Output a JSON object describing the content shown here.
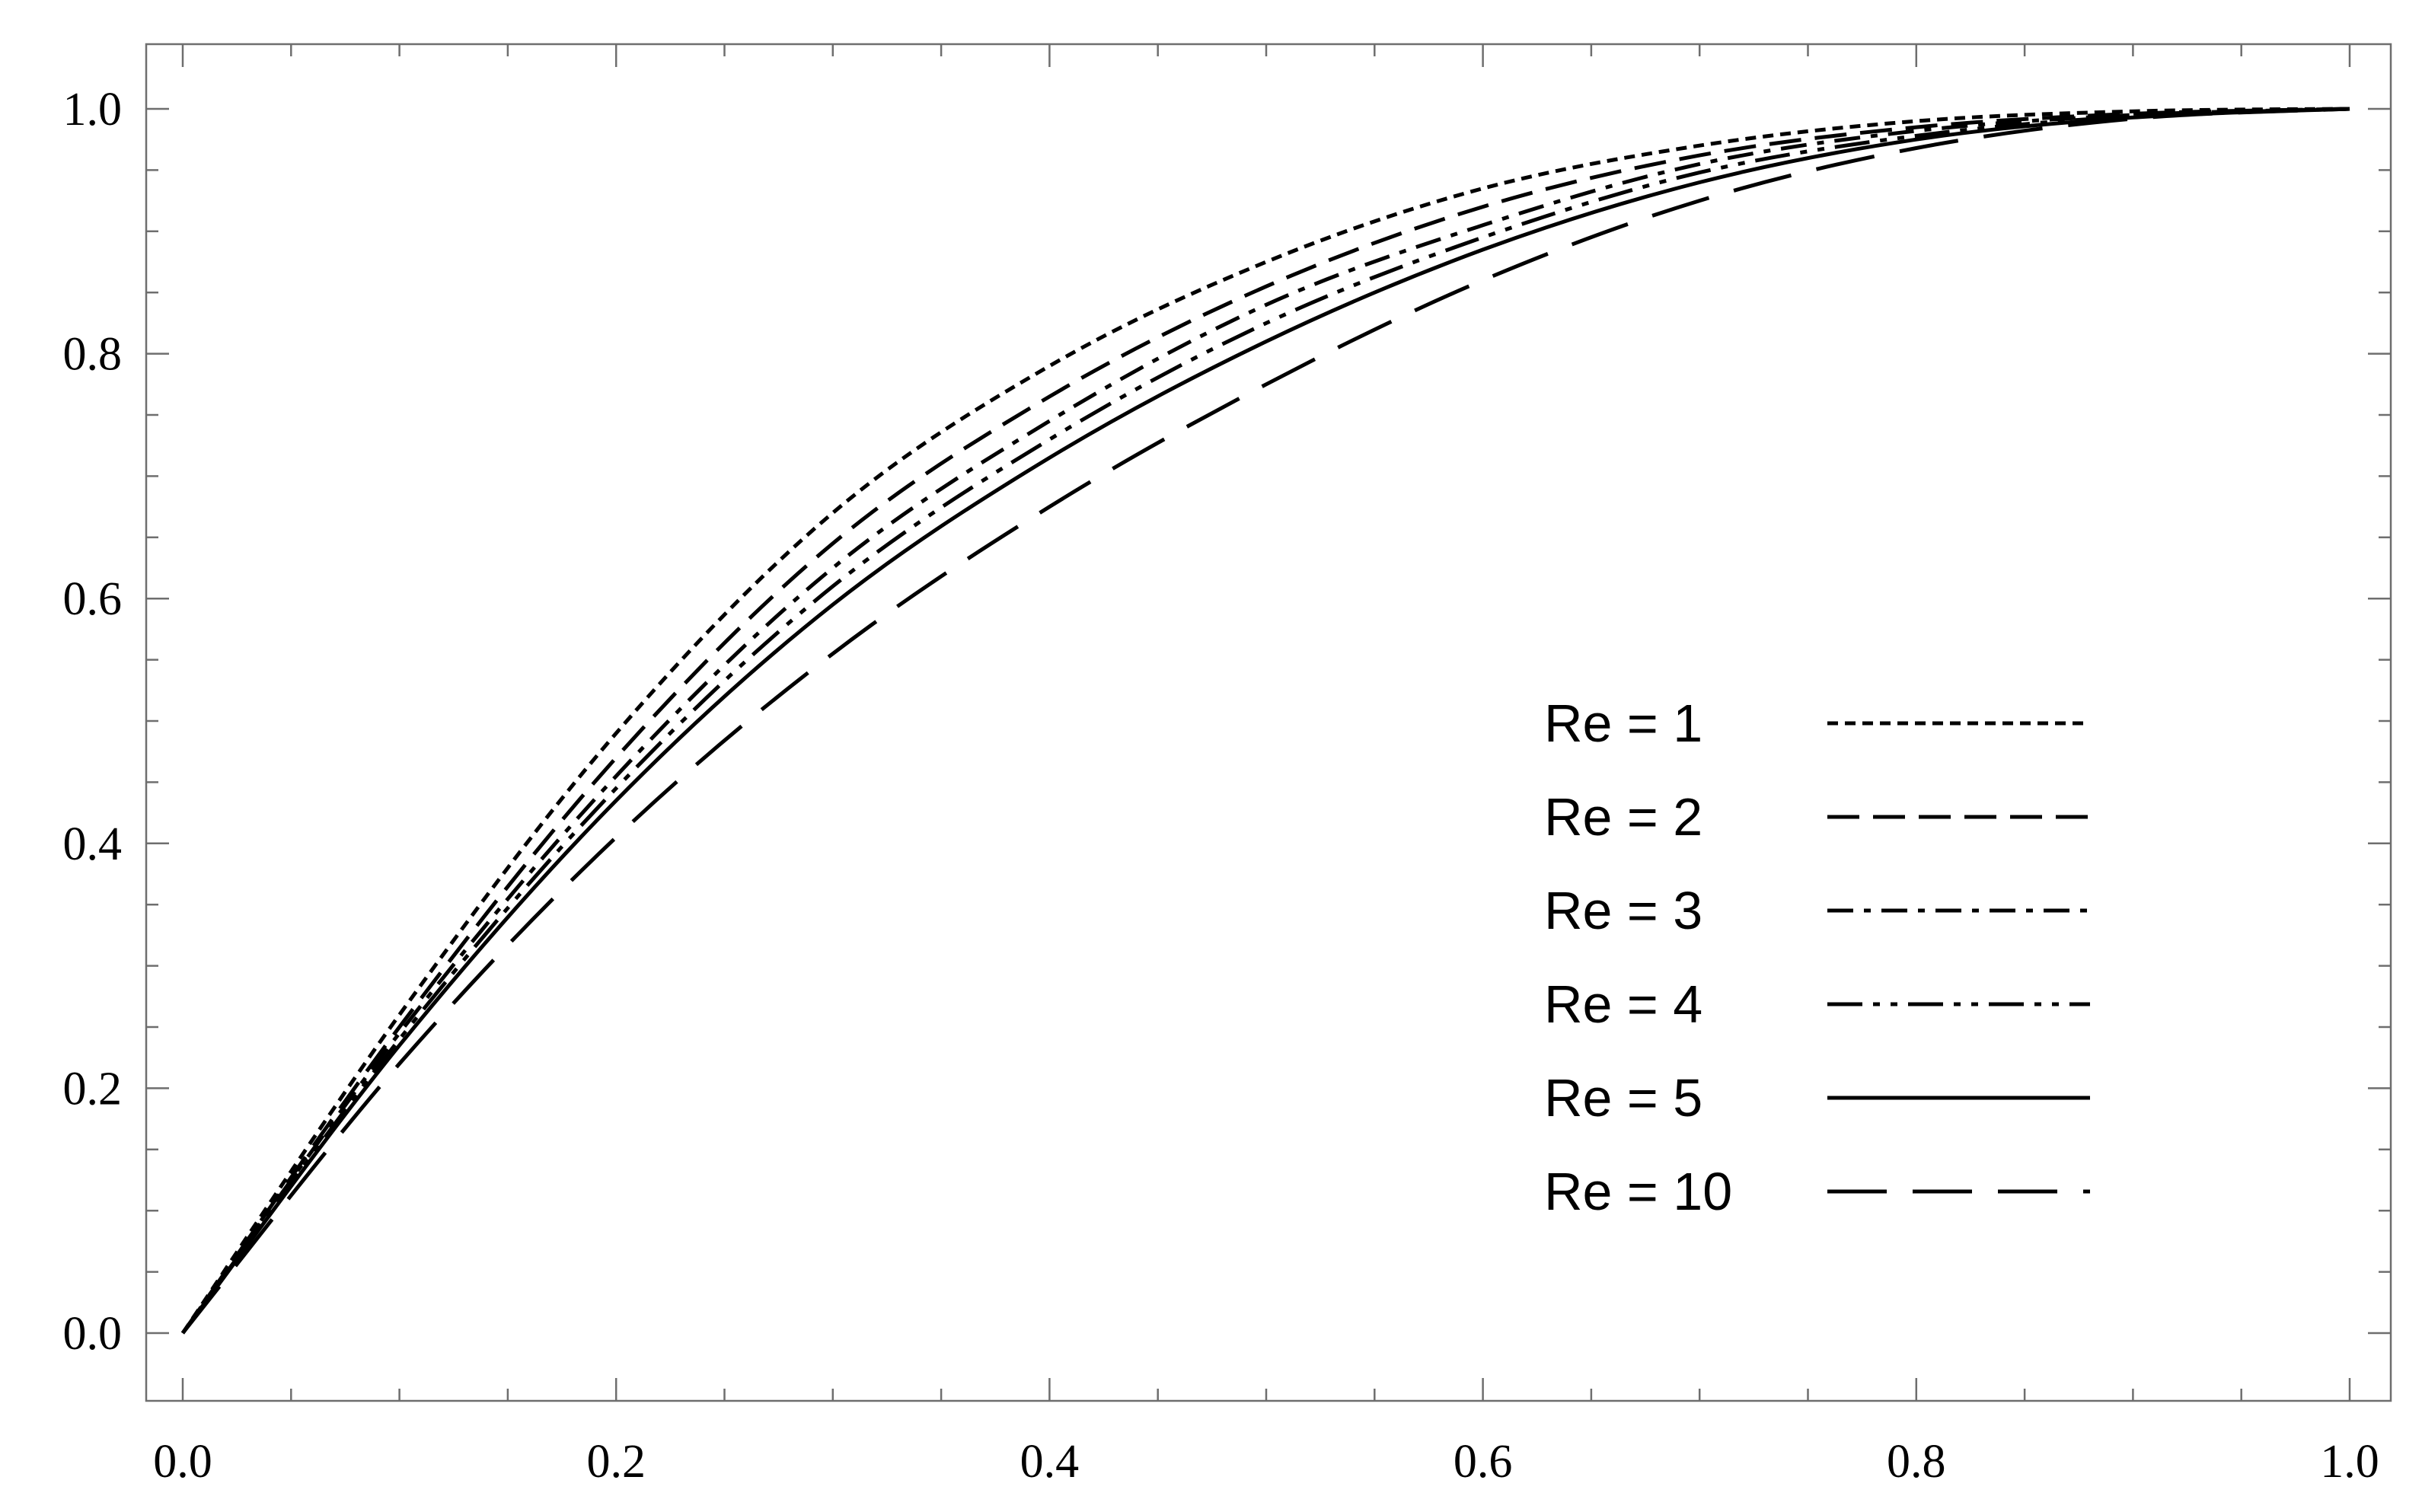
{
  "chart_data": {
    "type": "line",
    "title": "",
    "xlabel": "",
    "ylabel": "",
    "xlim": [
      0,
      1
    ],
    "ylim": [
      0,
      1
    ],
    "x_ticks": [
      "0.0",
      "0.2",
      "0.4",
      "0.6",
      "0.8",
      "1.0"
    ],
    "y_ticks": [
      "0.0",
      "0.2",
      "0.4",
      "0.6",
      "0.8",
      "1.0"
    ],
    "grid": false,
    "legend_position": "lower-right",
    "x": [
      0,
      0.1,
      0.2,
      0.3,
      0.4,
      0.5,
      0.6,
      0.7,
      0.8,
      0.9,
      1.0
    ],
    "series": [
      {
        "name": "Re = 1",
        "line_style": "dotted-thick",
        "values": [
          0,
          0.26,
          0.49,
          0.67,
          0.79,
          0.875,
          0.935,
          0.97,
          0.99,
          0.998,
          1.0
        ]
      },
      {
        "name": "Re = 2",
        "line_style": "dashed",
        "values": [
          0,
          0.25,
          0.47,
          0.645,
          0.765,
          0.855,
          0.92,
          0.962,
          0.985,
          0.996,
          1.0
        ]
      },
      {
        "name": "Re = 3",
        "line_style": "dash-dot",
        "values": [
          0,
          0.245,
          0.455,
          0.625,
          0.745,
          0.84,
          0.905,
          0.955,
          0.982,
          0.995,
          1.0
        ]
      },
      {
        "name": "Re = 4",
        "line_style": "dash-dot-dot",
        "values": [
          0,
          0.24,
          0.445,
          0.61,
          0.73,
          0.825,
          0.895,
          0.948,
          0.978,
          0.994,
          1.0
        ]
      },
      {
        "name": "Re = 5",
        "line_style": "solid",
        "values": [
          0,
          0.235,
          0.435,
          0.595,
          0.715,
          0.81,
          0.885,
          0.94,
          0.975,
          0.993,
          1.0
        ]
      },
      {
        "name": "Re = 10",
        "line_style": "long-dash",
        "values": [
          0,
          0.22,
          0.405,
          0.555,
          0.675,
          0.775,
          0.86,
          0.925,
          0.968,
          0.992,
          1.0
        ]
      }
    ]
  }
}
